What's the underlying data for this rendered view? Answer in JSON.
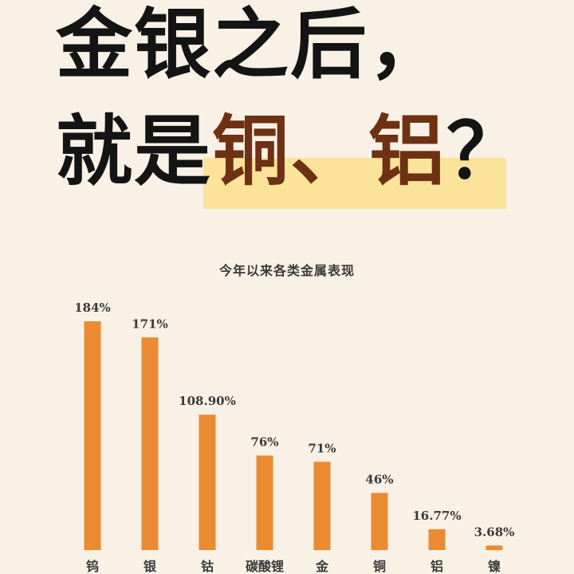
{
  "headline": {
    "line1": "金银之后，",
    "line2_plain": "就是",
    "line2_accent": "铜、铝",
    "line2_end": "？"
  },
  "colors": {
    "background": "#f9f1e6",
    "bar": "#ec8a32",
    "highlight": "#fbe39a",
    "accent_text": "#6e3113"
  },
  "chart_data": {
    "type": "bar",
    "title": "今年以来各类金属表现",
    "categories": [
      "钨",
      "银",
      "钴",
      "碳酸锂",
      "金",
      "铜",
      "铝",
      "镍"
    ],
    "values": [
      184,
      171,
      108.9,
      76,
      71,
      46,
      16.77,
      3.68
    ],
    "value_labels": [
      "184%",
      "171%",
      "108.90%",
      "76%",
      "71%",
      "46%",
      "16.77%",
      "3.68%"
    ],
    "ylim": [
      0,
      184
    ],
    "grid": false,
    "legend": "none"
  }
}
